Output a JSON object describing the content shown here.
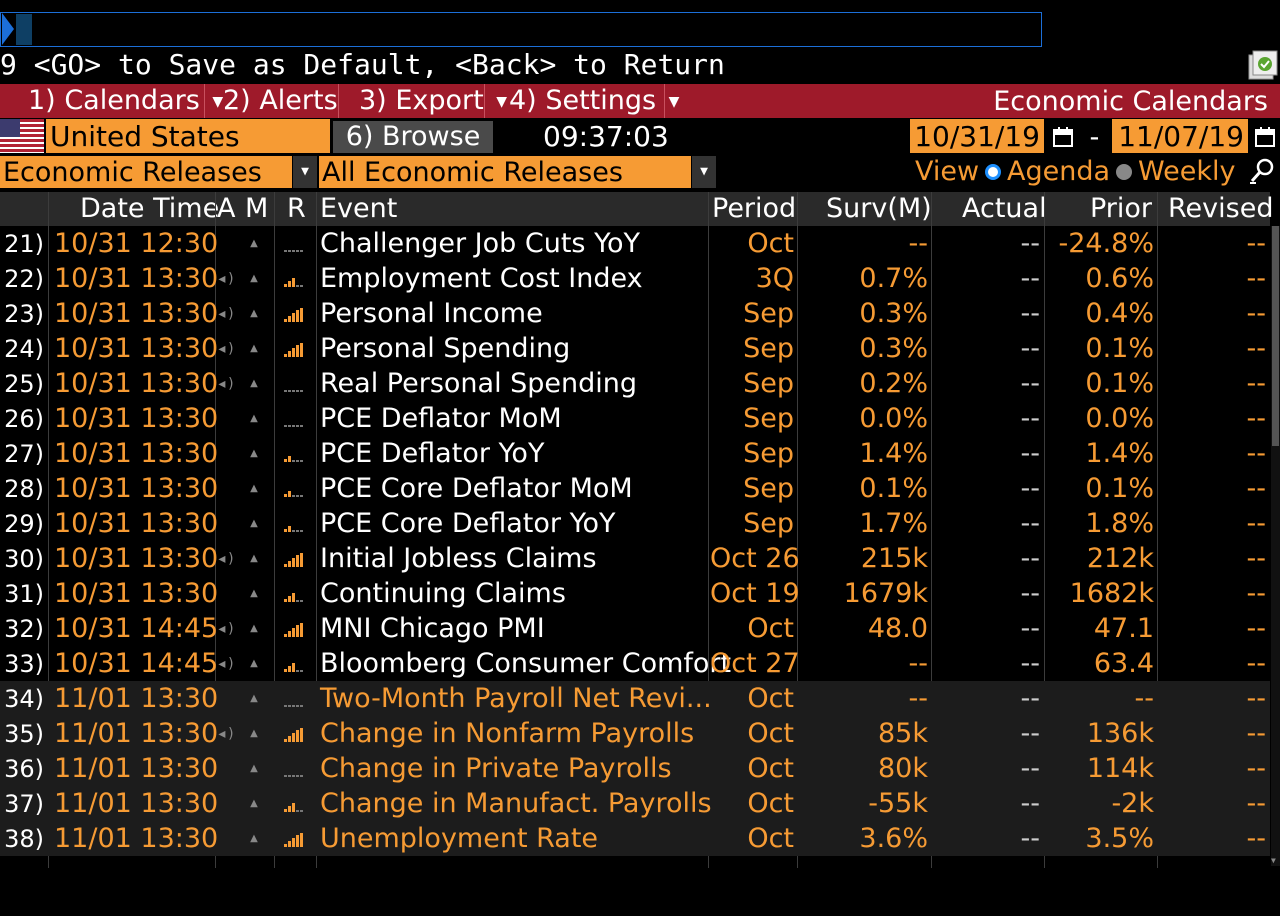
{
  "command_line": {
    "value": ""
  },
  "hint": "9 <GO> to Save as Default, <Back> to Return",
  "menu": [
    {
      "num": "1)",
      "label": "Calendars",
      "dropdown": true
    },
    {
      "num": "2)",
      "label": "Alerts",
      "dropdown": false
    },
    {
      "num": "3)",
      "label": "Export",
      "dropdown": true
    },
    {
      "num": "4)",
      "label": "Settings",
      "dropdown": true
    }
  ],
  "app_title": "Economic Calendars",
  "country": "United States",
  "browse": {
    "num": "6)",
    "label": "Browse"
  },
  "clock": "09:37:03",
  "date_from": "10/31/19",
  "date_separator": "-",
  "date_to": "11/07/19",
  "category": "Economic Releases",
  "filter": "All Economic Releases",
  "view": {
    "label": "View",
    "options": [
      "Agenda",
      "Weekly"
    ],
    "selected": "Agenda"
  },
  "columns": {
    "datetime": "Date Time",
    "a": "A",
    "m": "M",
    "r": "R",
    "event": "Event",
    "period": "Period",
    "surv": "Surv(M)",
    "actual": "Actual",
    "prior": "Prior",
    "revised": "Revised"
  },
  "colors": {
    "amber": "#f69b34",
    "menu_red": "#9e1a2a",
    "accent_blue": "#1c6fd8"
  },
  "rows": [
    {
      "idx": "21)",
      "dt": "10/31 12:30",
      "alert": false,
      "rel": 0,
      "event": "Challenger Job Cuts YoY",
      "period": "Oct",
      "surv": "--",
      "actual": "--",
      "prior": "-24.8%",
      "revised": "--",
      "released": true
    },
    {
      "idx": "22)",
      "dt": "10/31 13:30",
      "alert": true,
      "rel": 0.6,
      "event": "Employment Cost Index",
      "period": "3Q",
      "surv": "0.7%",
      "actual": "--",
      "prior": "0.6%",
      "revised": "--",
      "released": true
    },
    {
      "idx": "23)",
      "dt": "10/31 13:30",
      "alert": true,
      "rel": 0.9,
      "event": "Personal Income",
      "period": "Sep",
      "surv": "0.3%",
      "actual": "--",
      "prior": "0.4%",
      "revised": "--",
      "released": true
    },
    {
      "idx": "24)",
      "dt": "10/31 13:30",
      "alert": true,
      "rel": 0.9,
      "event": "Personal Spending",
      "period": "Sep",
      "surv": "0.3%",
      "actual": "--",
      "prior": "0.1%",
      "revised": "--",
      "released": true
    },
    {
      "idx": "25)",
      "dt": "10/31 13:30",
      "alert": true,
      "rel": 0,
      "event": "Real Personal Spending",
      "period": "Sep",
      "surv": "0.2%",
      "actual": "--",
      "prior": "0.1%",
      "revised": "--",
      "released": true
    },
    {
      "idx": "26)",
      "dt": "10/31 13:30",
      "alert": false,
      "rel": 0,
      "event": "PCE Deflator MoM",
      "period": "Sep",
      "surv": "0.0%",
      "actual": "--",
      "prior": "0.0%",
      "revised": "--",
      "released": true
    },
    {
      "idx": "27)",
      "dt": "10/31 13:30",
      "alert": false,
      "rel": 0.4,
      "event": "PCE Deflator YoY",
      "period": "Sep",
      "surv": "1.4%",
      "actual": "--",
      "prior": "1.4%",
      "revised": "--",
      "released": true
    },
    {
      "idx": "28)",
      "dt": "10/31 13:30",
      "alert": false,
      "rel": 0.4,
      "event": "PCE Core Deflator MoM",
      "period": "Sep",
      "surv": "0.1%",
      "actual": "--",
      "prior": "0.1%",
      "revised": "--",
      "released": true
    },
    {
      "idx": "29)",
      "dt": "10/31 13:30",
      "alert": false,
      "rel": 0.4,
      "event": "PCE Core Deflator YoY",
      "period": "Sep",
      "surv": "1.7%",
      "actual": "--",
      "prior": "1.8%",
      "revised": "--",
      "released": true
    },
    {
      "idx": "30)",
      "dt": "10/31 13:30",
      "alert": true,
      "rel": 0.9,
      "event": "Initial Jobless Claims",
      "period": "Oct 26",
      "surv": "215k",
      "actual": "--",
      "prior": "212k",
      "revised": "--",
      "released": true
    },
    {
      "idx": "31)",
      "dt": "10/31 13:30",
      "alert": false,
      "rel": 0.6,
      "event": "Continuing Claims",
      "period": "Oct 19",
      "surv": "1679k",
      "actual": "--",
      "prior": "1682k",
      "revised": "--",
      "released": true
    },
    {
      "idx": "32)",
      "dt": "10/31 14:45",
      "alert": true,
      "rel": 0.9,
      "event": "MNI Chicago PMI",
      "period": "Oct",
      "surv": "48.0",
      "actual": "--",
      "prior": "47.1",
      "revised": "--",
      "released": true
    },
    {
      "idx": "33)",
      "dt": "10/31 14:45",
      "alert": true,
      "rel": 0.6,
      "event": "Bloomberg Consumer Comfort",
      "period": "Oct 27",
      "surv": "--",
      "actual": "--",
      "prior": "63.4",
      "revised": "--",
      "released": true
    },
    {
      "idx": "34)",
      "dt": "11/01 13:30",
      "alert": false,
      "rel": 0,
      "event": "Two-Month Payroll Net Revi...",
      "period": "Oct",
      "surv": "--",
      "actual": "--",
      "prior": "--",
      "revised": "--",
      "released": false
    },
    {
      "idx": "35)",
      "dt": "11/01 13:30",
      "alert": true,
      "rel": 1,
      "event": "Change in Nonfarm Payrolls",
      "period": "Oct",
      "surv": "85k",
      "actual": "--",
      "prior": "136k",
      "revised": "--",
      "released": false
    },
    {
      "idx": "36)",
      "dt": "11/01 13:30",
      "alert": false,
      "rel": 0,
      "event": "Change in Private Payrolls",
      "period": "Oct",
      "surv": "80k",
      "actual": "--",
      "prior": "114k",
      "revised": "--",
      "released": false
    },
    {
      "idx": "37)",
      "dt": "11/01 13:30",
      "alert": false,
      "rel": 0.6,
      "event": "Change in Manufact. Payrolls",
      "period": "Oct",
      "surv": "-55k",
      "actual": "--",
      "prior": "-2k",
      "revised": "--",
      "released": false
    },
    {
      "idx": "38)",
      "dt": "11/01 13:30",
      "alert": false,
      "rel": 1,
      "event": "Unemployment Rate",
      "period": "Oct",
      "surv": "3.6%",
      "actual": "--",
      "prior": "3.5%",
      "revised": "--",
      "released": false
    }
  ]
}
